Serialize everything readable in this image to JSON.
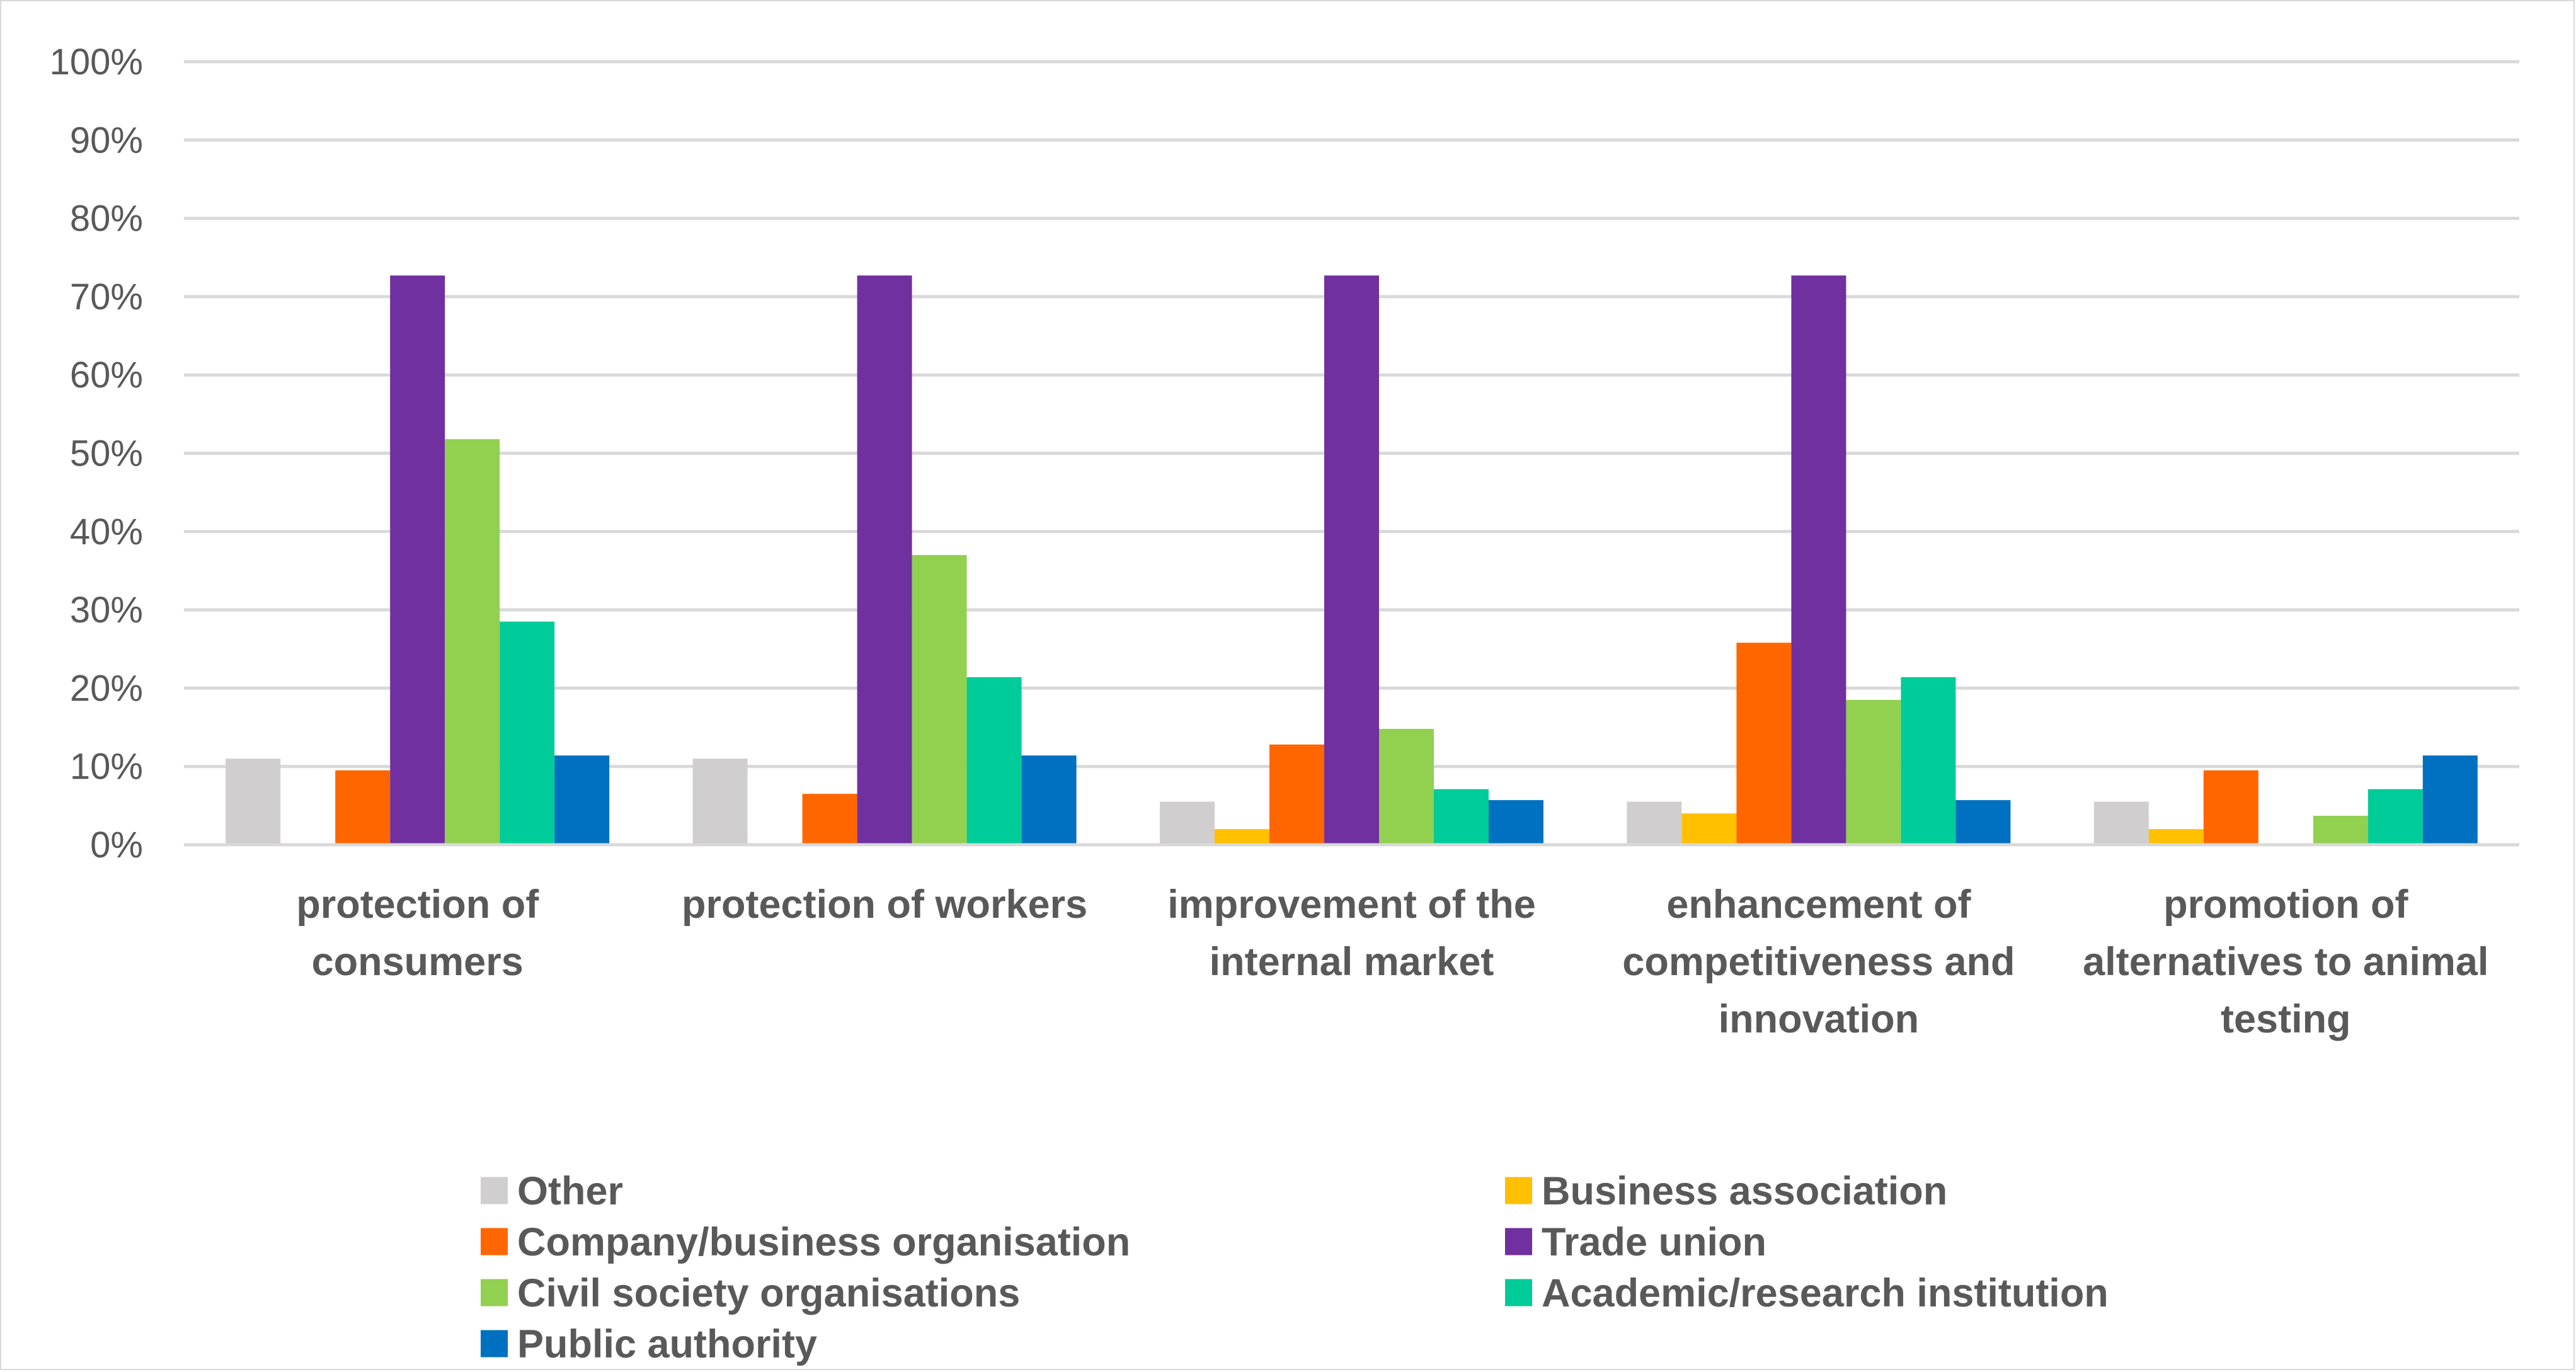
{
  "chart_data": {
    "type": "bar",
    "title": "",
    "xlabel": "",
    "ylabel": "",
    "ylim": [
      0,
      100
    ],
    "y_ticks": [
      0,
      10,
      20,
      30,
      40,
      50,
      60,
      70,
      80,
      90,
      100
    ],
    "y_tick_suffix": "%",
    "grid": true,
    "legend_position": "bottom",
    "categories": [
      [
        "protection of",
        "consumers"
      ],
      [
        "protection of workers"
      ],
      [
        "improvement of the",
        "internal market"
      ],
      [
        "enhancement of",
        "competitiveness and",
        "innovation"
      ],
      [
        "promotion of",
        "alternatives to animal",
        "testing"
      ]
    ],
    "series": [
      {
        "name": "Other",
        "color": "#d0cece",
        "values": [
          11,
          11,
          5.5,
          5.5,
          5.5
        ]
      },
      {
        "name": "Business association",
        "color": "#ffc000",
        "values": [
          0,
          0,
          2,
          4,
          2
        ]
      },
      {
        "name": "Company/business organisation",
        "color": "#ff6600",
        "values": [
          9.5,
          6.5,
          12.8,
          25.8,
          9.5
        ]
      },
      {
        "name": "Trade union",
        "color": "#7030a0",
        "values": [
          72.7,
          72.7,
          72.7,
          72.7,
          0
        ]
      },
      {
        "name": "Civil society organisations",
        "color": "#92d050",
        "values": [
          51.8,
          37,
          14.8,
          18.5,
          3.7
        ]
      },
      {
        "name": "Academic/research institution",
        "color": "#00cc99",
        "values": [
          28.5,
          21.4,
          7.1,
          21.4,
          7.1
        ]
      },
      {
        "name": "Public authority",
        "color": "#0070c0",
        "values": [
          11.4,
          11.4,
          5.7,
          5.7,
          11.4
        ]
      }
    ]
  }
}
